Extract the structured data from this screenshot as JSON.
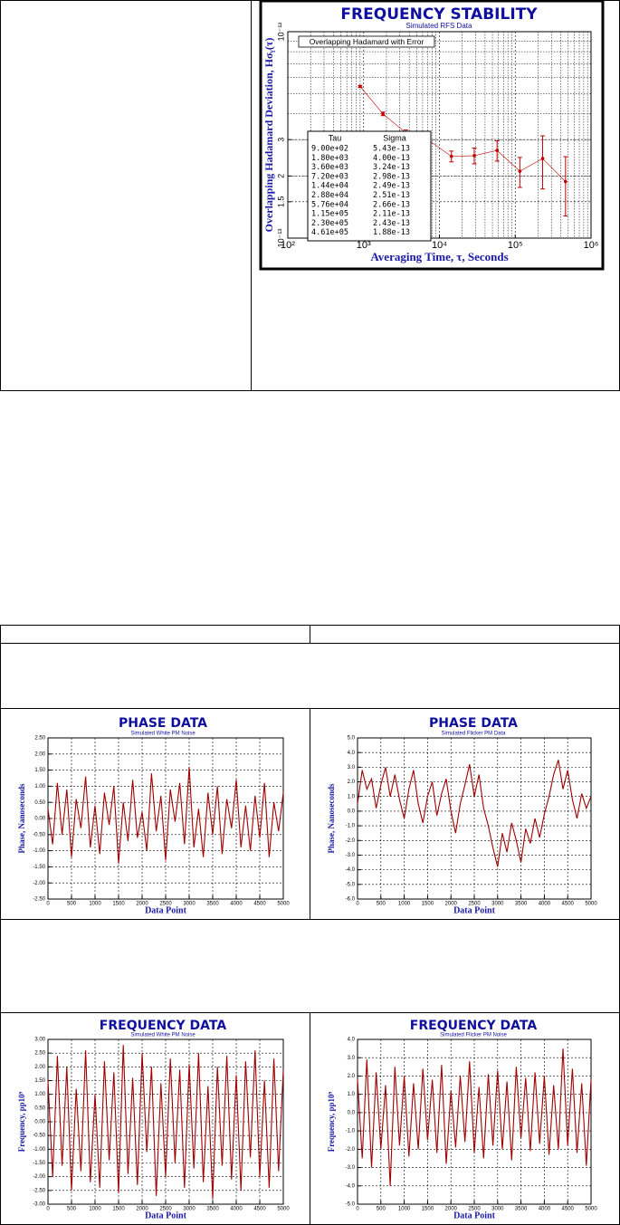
{
  "chart_data": [
    {
      "type": "errorbar",
      "title": "FREQUENCY STABILITY",
      "subtitle": "Simulated RFS Data",
      "x_label": "Averaging Time, τ, Seconds",
      "y_label": "Overlapping Hadamard Deviation, Hσᵧ(τ)",
      "legend_label": "Overlapping Hadamard with Error",
      "table_headers": [
        "Tau",
        "Sigma"
      ],
      "x": [
        900,
        1800,
        3600,
        7200,
        14400,
        28800,
        57600,
        115000,
        230000,
        461000
      ],
      "x_labels": [
        "9.00e+02",
        "1.80e+03",
        "3.60e+03",
        "7.20e+03",
        "1.44e+04",
        "2.88e+04",
        "5.76e+04",
        "1.15e+05",
        "2.30e+05",
        "4.61e+05"
      ],
      "values": [
        5.43e-13,
        4e-13,
        3.24e-13,
        2.98e-13,
        2.49e-13,
        2.51e-13,
        2.66e-13,
        2.11e-13,
        2.43e-13,
        1.88e-13
      ],
      "value_labels": [
        "5.43e-13",
        "4.00e-13",
        "3.24e-13",
        "2.98e-13",
        "2.49e-13",
        "2.51e-13",
        "2.66e-13",
        "2.11e-13",
        "2.43e-13",
        "1.88e-13"
      ],
      "errors": [
        6e-15,
        8e-15,
        1e-14,
        1.2e-14,
        1.5e-14,
        2.2e-14,
        3e-14,
        3.5e-14,
        7e-14,
        6e-14
      ],
      "color": "#c00000",
      "xlog": true,
      "ylog": true,
      "grid": true,
      "minor_grid": true,
      "xlim": [
        100,
        1000000
      ],
      "ylim": [
        1e-13,
        1e-12
      ],
      "xticks": [
        {
          "value": 100,
          "label": "10²"
        },
        {
          "value": 1000,
          "label": "10³"
        },
        {
          "value": 10000,
          "label": "10⁴"
        },
        {
          "value": 100000,
          "label": "10⁵"
        },
        {
          "value": 1000000,
          "label": "10⁶"
        }
      ],
      "yticks": [
        {
          "value": 1e-13,
          "label": "10⁻¹³"
        },
        {
          "value": 1.5e-13,
          "label": "1.5"
        },
        {
          "value": 2e-13,
          "label": "2"
        },
        {
          "value": 3e-13,
          "label": "3"
        },
        {
          "value": 1e-12,
          "label": "10⁻¹²"
        }
      ]
    },
    {
      "type": "line",
      "title": "PHASE DATA",
      "subtitle": "Simulated White PM Noise",
      "x_label": "Data Point",
      "y_label": "Phase, Nanoseconds",
      "color": "#a00000",
      "grid": true,
      "xlim": [
        0,
        5000
      ],
      "ylim": [
        -2.5,
        2.5
      ],
      "xticks": [
        0,
        500,
        1000,
        1500,
        2000,
        2500,
        3000,
        3500,
        4000,
        4500,
        5000
      ],
      "yticks": [
        {
          "value": 2.5,
          "label": "2.50"
        },
        {
          "value": 2,
          "label": "2.00"
        },
        {
          "value": 1.5,
          "label": "1.50"
        },
        {
          "value": 1,
          "label": "1.00"
        },
        {
          "value": 0.5,
          "label": "0.50"
        },
        {
          "value": 0,
          "label": "0.00"
        },
        {
          "value": -0.5,
          "label": "-0.50"
        },
        {
          "value": -1,
          "label": "-1.00"
        },
        {
          "value": -1.5,
          "label": "-1.50"
        },
        {
          "value": -2,
          "label": "-2.00"
        },
        {
          "value": -2.5,
          "label": "-2.50"
        }
      ],
      "x": [
        0,
        100,
        200,
        300,
        400,
        500,
        600,
        700,
        800,
        900,
        1000,
        1100,
        1200,
        1300,
        1400,
        1500,
        1600,
        1700,
        1800,
        1900,
        2000,
        2100,
        2200,
        2300,
        2400,
        2500,
        2600,
        2700,
        2800,
        2900,
        3000,
        3100,
        3200,
        3300,
        3400,
        3500,
        3600,
        3700,
        3800,
        3900,
        4000,
        4100,
        4200,
        4300,
        4400,
        4500,
        4600,
        4700,
        4800,
        4900,
        5000
      ],
      "values": [
        0.3,
        -0.8,
        1.1,
        -0.5,
        0.9,
        -1.2,
        0.6,
        -0.3,
        1.3,
        -0.9,
        0.4,
        -1.1,
        0.8,
        -0.2,
        1.0,
        -1.4,
        0.5,
        -0.7,
        1.2,
        -0.6,
        0.2,
        -1.0,
        1.4,
        -0.4,
        0.7,
        -1.3,
        0.9,
        -0.1,
        1.1,
        -0.8,
        1.6,
        -0.9,
        0.3,
        -1.2,
        0.8,
        -0.5,
        1.0,
        -1.1,
        0.6,
        -0.3,
        1.2,
        -0.9,
        0.4,
        -1.0,
        0.7,
        -0.6,
        1.1,
        -1.2,
        0.5,
        -0.4,
        0.8
      ]
    },
    {
      "type": "line",
      "title": "PHASE DATA",
      "subtitle": "Simulated Flicker PM Data",
      "x_label": "Data Point",
      "y_label": "Phase, Nanoseconds",
      "color": "#a00000",
      "grid": true,
      "xlim": [
        0,
        5000
      ],
      "ylim": [
        -6,
        5
      ],
      "xticks": [
        0,
        500,
        1000,
        1500,
        2000,
        2500,
        3000,
        3500,
        4000,
        4500,
        5000
      ],
      "yticks": [
        {
          "value": 5,
          "label": "5.0"
        },
        {
          "value": 4,
          "label": "4.0"
        },
        {
          "value": 3,
          "label": "3.0"
        },
        {
          "value": 2,
          "label": "2.0"
        },
        {
          "value": 1,
          "label": "1.0"
        },
        {
          "value": 0,
          "label": "0.0"
        },
        {
          "value": -1,
          "label": "-1.0"
        },
        {
          "value": -2,
          "label": "-2.0"
        },
        {
          "value": -3,
          "label": "-3.0"
        },
        {
          "value": -4,
          "label": "-4.0"
        },
        {
          "value": -5,
          "label": "-5.0"
        },
        {
          "value": -6,
          "label": "-6.0"
        }
      ],
      "x": [
        0,
        100,
        200,
        300,
        400,
        500,
        600,
        700,
        800,
        900,
        1000,
        1100,
        1200,
        1300,
        1400,
        1500,
        1600,
        1700,
        1800,
        1900,
        2000,
        2100,
        2200,
        2300,
        2400,
        2500,
        2600,
        2700,
        2800,
        2900,
        3000,
        3100,
        3200,
        3300,
        3400,
        3500,
        3600,
        3700,
        3800,
        3900,
        4000,
        4100,
        4200,
        4300,
        4400,
        4500,
        4600,
        4700,
        4800,
        4900,
        5000
      ],
      "values": [
        0.5,
        2.8,
        1.5,
        2.2,
        0.2,
        1.8,
        3.0,
        1.0,
        2.5,
        0.8,
        -0.5,
        1.5,
        2.8,
        0.5,
        -0.8,
        1.0,
        2.0,
        -0.3,
        1.2,
        2.2,
        0.0,
        -1.5,
        0.5,
        1.8,
        3.2,
        1.0,
        2.5,
        0.2,
        -1.0,
        -2.5,
        -3.8,
        -1.5,
        -2.8,
        -0.8,
        -2.0,
        -3.5,
        -1.2,
        -2.2,
        -0.5,
        -1.8,
        -0.2,
        1.0,
        2.5,
        3.5,
        1.5,
        2.8,
        0.8,
        -0.5,
        1.2,
        0.2,
        1.0
      ]
    },
    {
      "type": "line",
      "title": "FREQUENCY DATA",
      "subtitle": "Simulated White PM Noise",
      "x_label": "Data Point",
      "y_label": "Frequency, pp10⁹",
      "color": "#a00000",
      "grid": true,
      "xlim": [
        0,
        5000
      ],
      "ylim": [
        -3,
        3
      ],
      "xticks": [
        0,
        500,
        1000,
        1500,
        2000,
        2500,
        3000,
        3500,
        4000,
        4500,
        5000
      ],
      "yticks": [
        {
          "value": 3,
          "label": "3.00"
        },
        {
          "value": 2.5,
          "label": "2.50"
        },
        {
          "value": 2,
          "label": "2.00"
        },
        {
          "value": 1.5,
          "label": "1.50"
        },
        {
          "value": 1,
          "label": "1.00"
        },
        {
          "value": 0.5,
          "label": "0.50"
        },
        {
          "value": 0,
          "label": "0.00"
        },
        {
          "value": -0.5,
          "label": "-0.50"
        },
        {
          "value": -1,
          "label": "-1.00"
        },
        {
          "value": -1.5,
          "label": "-1.50"
        },
        {
          "value": -2,
          "label": "-2.00"
        },
        {
          "value": -2.5,
          "label": "-2.50"
        },
        {
          "value": -3,
          "label": "-3.00"
        }
      ],
      "x": [
        0,
        100,
        200,
        300,
        400,
        500,
        600,
        700,
        800,
        900,
        1000,
        1100,
        1200,
        1300,
        1400,
        1500,
        1600,
        1700,
        1800,
        1900,
        2000,
        2100,
        2200,
        2300,
        2400,
        2500,
        2600,
        2700,
        2800,
        2900,
        3000,
        3100,
        3200,
        3300,
        3400,
        3500,
        3600,
        3700,
        3800,
        3900,
        4000,
        4100,
        4200,
        4300,
        4400,
        4500,
        4600,
        4700,
        4800,
        4900,
        5000
      ],
      "values": [
        1.5,
        -2.0,
        2.4,
        -1.6,
        2.0,
        -2.5,
        1.2,
        -1.8,
        2.6,
        -2.2,
        1.0,
        -2.4,
        2.2,
        -1.4,
        1.8,
        -2.6,
        2.8,
        -1.9,
        1.6,
        -2.3,
        2.5,
        -1.1,
        2.0,
        -2.7,
        1.4,
        -2.0,
        2.3,
        -1.5,
        1.9,
        -2.4,
        2.1,
        -1.7,
        2.5,
        -2.2,
        1.3,
        -2.8,
        2.0,
        -1.6,
        2.4,
        -2.1,
        1.7,
        -2.5,
        2.2,
        -1.3,
        2.6,
        -2.0,
        1.5,
        -2.4,
        2.3,
        -1.8,
        1.9
      ]
    },
    {
      "type": "line",
      "title": "FREQUENCY DATA",
      "subtitle": "Simulated Flicker PM Noise",
      "x_label": "Data Point",
      "y_label": "Frequency, pp10⁹",
      "color": "#a00000",
      "grid": true,
      "xlim": [
        0,
        5000
      ],
      "ylim": [
        -5,
        4
      ],
      "xticks": [
        0,
        500,
        1000,
        1500,
        2000,
        2500,
        3000,
        3500,
        4000,
        4500,
        5000
      ],
      "yticks": [
        {
          "value": 4,
          "label": "4.0"
        },
        {
          "value": 3,
          "label": "3.0"
        },
        {
          "value": 2,
          "label": "2.0"
        },
        {
          "value": 1,
          "label": "1.0"
        },
        {
          "value": 0,
          "label": "0.0"
        },
        {
          "value": -1,
          "label": "-1.0"
        },
        {
          "value": -2,
          "label": "-2.0"
        },
        {
          "value": -3,
          "label": "-3.0"
        },
        {
          "value": -4,
          "label": "-4.0"
        },
        {
          "value": -5,
          "label": "-5.0"
        }
      ],
      "x": [
        0,
        100,
        200,
        300,
        400,
        500,
        600,
        700,
        800,
        900,
        1000,
        1100,
        1200,
        1300,
        1400,
        1500,
        1600,
        1700,
        1800,
        1900,
        2000,
        2100,
        2200,
        2300,
        2400,
        2500,
        2600,
        2700,
        2800,
        2900,
        3000,
        3100,
        3200,
        3300,
        3400,
        3500,
        3600,
        3700,
        3800,
        3900,
        4000,
        4100,
        4200,
        4300,
        4400,
        4500,
        4600,
        4700,
        4800,
        4900,
        5000
      ],
      "values": [
        1.8,
        -2.5,
        2.9,
        -3.0,
        2.2,
        -2.0,
        1.5,
        -4.0,
        2.5,
        -1.8,
        2.0,
        -2.4,
        1.6,
        -2.0,
        2.4,
        -1.5,
        1.8,
        -2.2,
        2.6,
        -2.8,
        1.2,
        -1.9,
        2.0,
        -1.6,
        2.8,
        -2.2,
        1.4,
        -2.5,
        2.1,
        -1.8,
        2.3,
        -2.0,
        1.7,
        -2.6,
        2.5,
        -1.4,
        1.9,
        -2.1,
        2.2,
        -1.7,
        2.0,
        -2.3,
        1.5,
        -2.0,
        3.5,
        -1.8,
        2.4,
        -2.2,
        1.6,
        -2.9,
        1.8
      ]
    }
  ]
}
